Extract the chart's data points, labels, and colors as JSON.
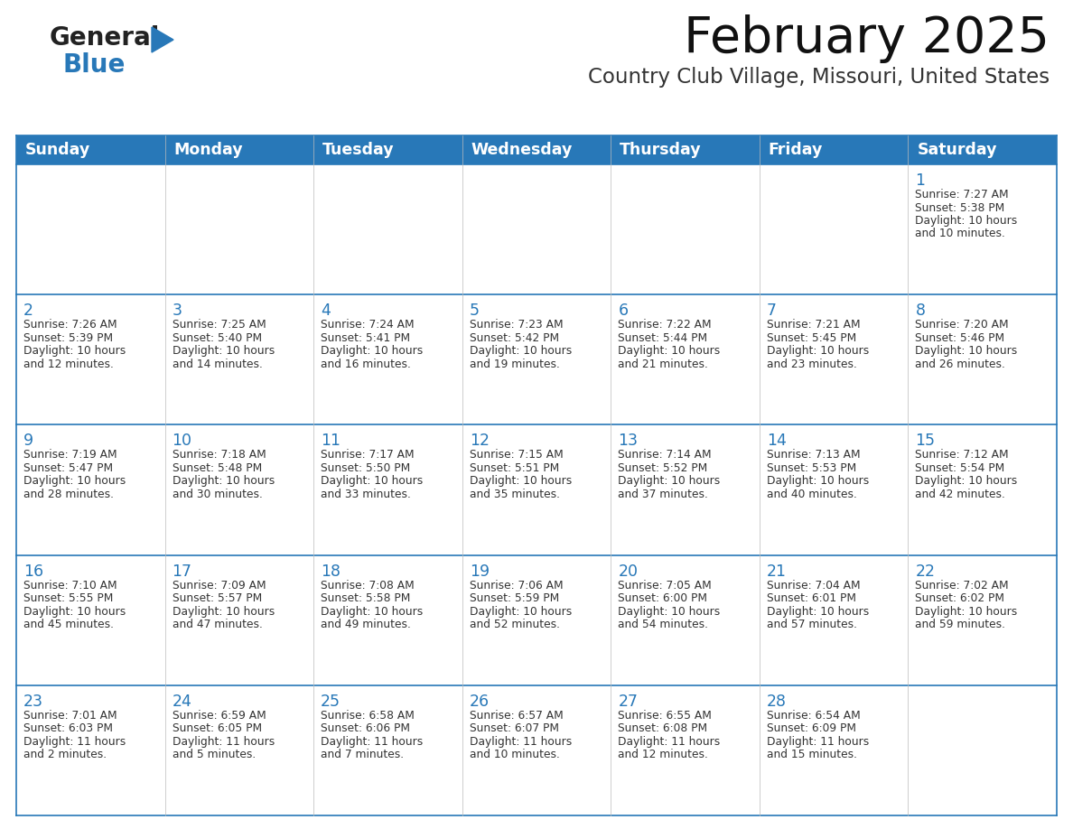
{
  "title": "February 2025",
  "subtitle": "Country Club Village, Missouri, United States",
  "header_bg": "#2878B8",
  "header_text_color": "#FFFFFF",
  "border_color": "#2878B8",
  "day_number_color": "#2878B8",
  "cell_text_color": "#333333",
  "title_color": "#111111",
  "subtitle_color": "#333333",
  "logo_general_color": "#222222",
  "logo_blue_color": "#2878B8",
  "days_of_week": [
    "Sunday",
    "Monday",
    "Tuesday",
    "Wednesday",
    "Thursday",
    "Friday",
    "Saturday"
  ],
  "calendar": [
    [
      null,
      null,
      null,
      null,
      null,
      null,
      {
        "day": 1,
        "sunrise": "7:27 AM",
        "sunset": "5:38 PM",
        "daylight": "10 hours and 10 minutes."
      }
    ],
    [
      {
        "day": 2,
        "sunrise": "7:26 AM",
        "sunset": "5:39 PM",
        "daylight": "10 hours and 12 minutes."
      },
      {
        "day": 3,
        "sunrise": "7:25 AM",
        "sunset": "5:40 PM",
        "daylight": "10 hours and 14 minutes."
      },
      {
        "day": 4,
        "sunrise": "7:24 AM",
        "sunset": "5:41 PM",
        "daylight": "10 hours and 16 minutes."
      },
      {
        "day": 5,
        "sunrise": "7:23 AM",
        "sunset": "5:42 PM",
        "daylight": "10 hours and 19 minutes."
      },
      {
        "day": 6,
        "sunrise": "7:22 AM",
        "sunset": "5:44 PM",
        "daylight": "10 hours and 21 minutes."
      },
      {
        "day": 7,
        "sunrise": "7:21 AM",
        "sunset": "5:45 PM",
        "daylight": "10 hours and 23 minutes."
      },
      {
        "day": 8,
        "sunrise": "7:20 AM",
        "sunset": "5:46 PM",
        "daylight": "10 hours and 26 minutes."
      }
    ],
    [
      {
        "day": 9,
        "sunrise": "7:19 AM",
        "sunset": "5:47 PM",
        "daylight": "10 hours and 28 minutes."
      },
      {
        "day": 10,
        "sunrise": "7:18 AM",
        "sunset": "5:48 PM",
        "daylight": "10 hours and 30 minutes."
      },
      {
        "day": 11,
        "sunrise": "7:17 AM",
        "sunset": "5:50 PM",
        "daylight": "10 hours and 33 minutes."
      },
      {
        "day": 12,
        "sunrise": "7:15 AM",
        "sunset": "5:51 PM",
        "daylight": "10 hours and 35 minutes."
      },
      {
        "day": 13,
        "sunrise": "7:14 AM",
        "sunset": "5:52 PM",
        "daylight": "10 hours and 37 minutes."
      },
      {
        "day": 14,
        "sunrise": "7:13 AM",
        "sunset": "5:53 PM",
        "daylight": "10 hours and 40 minutes."
      },
      {
        "day": 15,
        "sunrise": "7:12 AM",
        "sunset": "5:54 PM",
        "daylight": "10 hours and 42 minutes."
      }
    ],
    [
      {
        "day": 16,
        "sunrise": "7:10 AM",
        "sunset": "5:55 PM",
        "daylight": "10 hours and 45 minutes."
      },
      {
        "day": 17,
        "sunrise": "7:09 AM",
        "sunset": "5:57 PM",
        "daylight": "10 hours and 47 minutes."
      },
      {
        "day": 18,
        "sunrise": "7:08 AM",
        "sunset": "5:58 PM",
        "daylight": "10 hours and 49 minutes."
      },
      {
        "day": 19,
        "sunrise": "7:06 AM",
        "sunset": "5:59 PM",
        "daylight": "10 hours and 52 minutes."
      },
      {
        "day": 20,
        "sunrise": "7:05 AM",
        "sunset": "6:00 PM",
        "daylight": "10 hours and 54 minutes."
      },
      {
        "day": 21,
        "sunrise": "7:04 AM",
        "sunset": "6:01 PM",
        "daylight": "10 hours and 57 minutes."
      },
      {
        "day": 22,
        "sunrise": "7:02 AM",
        "sunset": "6:02 PM",
        "daylight": "10 hours and 59 minutes."
      }
    ],
    [
      {
        "day": 23,
        "sunrise": "7:01 AM",
        "sunset": "6:03 PM",
        "daylight": "11 hours and 2 minutes."
      },
      {
        "day": 24,
        "sunrise": "6:59 AM",
        "sunset": "6:05 PM",
        "daylight": "11 hours and 5 minutes."
      },
      {
        "day": 25,
        "sunrise": "6:58 AM",
        "sunset": "6:06 PM",
        "daylight": "11 hours and 7 minutes."
      },
      {
        "day": 26,
        "sunrise": "6:57 AM",
        "sunset": "6:07 PM",
        "daylight": "11 hours and 10 minutes."
      },
      {
        "day": 27,
        "sunrise": "6:55 AM",
        "sunset": "6:08 PM",
        "daylight": "11 hours and 12 minutes."
      },
      {
        "day": 28,
        "sunrise": "6:54 AM",
        "sunset": "6:09 PM",
        "daylight": "11 hours and 15 minutes."
      },
      null
    ]
  ]
}
